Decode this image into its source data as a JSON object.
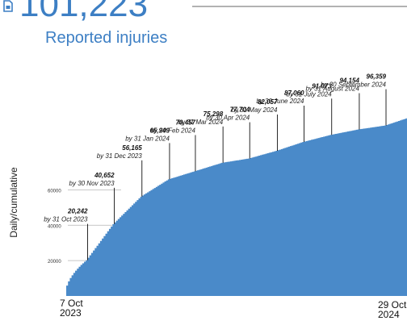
{
  "headline": {
    "number": "101,223",
    "subtitle": "Reported injuries",
    "icon": "document-icon",
    "color": "#3d7fc4"
  },
  "chart_data": {
    "type": "area",
    "ylabel": "Daily/cumulative",
    "color": "#4a8ac9",
    "ylim": [
      0,
      101223
    ],
    "yticks": [
      20000,
      40000,
      60000
    ],
    "grid": false,
    "x_start": {
      "line1": "7 Oct",
      "line2": "2023"
    },
    "x_end": {
      "line1": "29 Oct",
      "line2": "2024"
    },
    "x_range": [
      "2023-10-07",
      "2024-10-29"
    ],
    "milestones": [
      {
        "date": "2023-10-31",
        "value": 20242,
        "value_label": "20,242",
        "label": "by 31 Oct 2023"
      },
      {
        "date": "2023-11-30",
        "value": 40652,
        "value_label": "40,652",
        "label": "by 30 Nov 2023"
      },
      {
        "date": "2023-12-31",
        "value": 56165,
        "value_label": "56,165",
        "label": "by 31 Dec 2023"
      },
      {
        "date": "2024-01-31",
        "value": 65949,
        "value_label": "65,949",
        "label": "by 31 Jan 2024"
      },
      {
        "date": "2024-02-29",
        "value": 70457,
        "value_label": "70,457",
        "label": "by 29 Feb 2024"
      },
      {
        "date": "2024-03-31",
        "value": 75298,
        "value_label": "75,298",
        "label": "by 31 Mar 2024"
      },
      {
        "date": "2024-04-30",
        "value": 77704,
        "value_label": "77,704",
        "label": "by 30 Apr 2024"
      },
      {
        "date": "2024-05-31",
        "value": 82057,
        "value_label": "82,057",
        "label": "by 31 May 2024"
      },
      {
        "date": "2024-06-30",
        "value": 87060,
        "value_label": "87,060",
        "label": "by 30 June 2024"
      },
      {
        "date": "2024-07-31",
        "value": 91073,
        "value_label": "91,073",
        "label": "by 31 July 2024"
      },
      {
        "date": "2024-08-31",
        "value": 94154,
        "value_label": "94,154",
        "label": "by 31 August 2024"
      },
      {
        "date": "2024-09-30",
        "value": 96359,
        "value_label": "96,359",
        "label": "by 30 September 2024"
      },
      {
        "date": "2024-10-29",
        "value": 101223,
        "value_label": "",
        "label": ""
      }
    ]
  }
}
